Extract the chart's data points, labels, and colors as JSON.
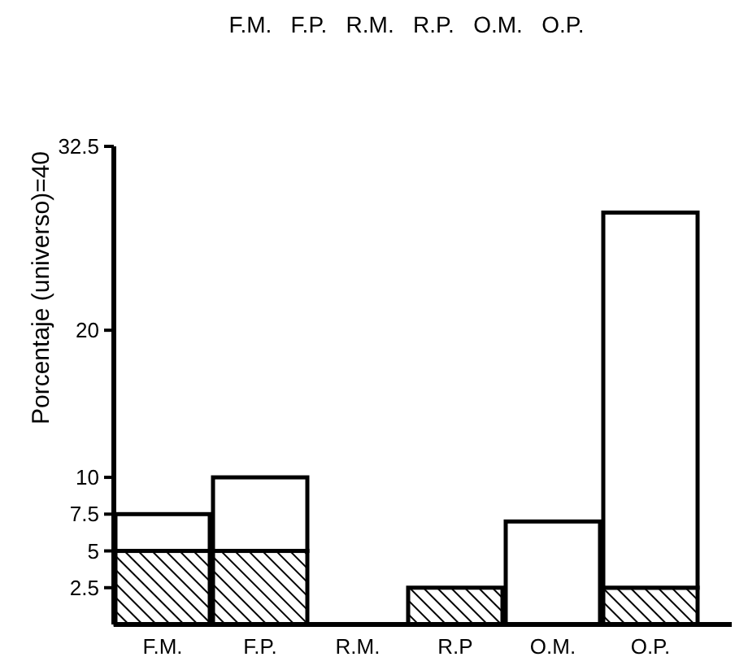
{
  "chart_data": {
    "type": "bar",
    "stacked": true,
    "ylabel": "Porcentaje   (universo)=40",
    "annotations": [
      "F.M.   F.P.   R.M.   R.P.   O.M.   O.P."
    ],
    "categories": [
      "F.M.",
      "F.P.",
      "R.M.",
      "R.P",
      "O.M.",
      "O.P."
    ],
    "series": [
      {
        "color": "#000000",
        "values": [
          5,
          5,
          0,
          2.5,
          0,
          2.5
        ]
      },
      {
        "color": "#ffffff",
        "values": [
          2.5,
          5,
          0,
          0,
          7,
          25.5
        ]
      }
    ],
    "ylim": [
      0,
      32.5
    ],
    "yticks": [
      2.5,
      5,
      7.5,
      10,
      20,
      32.5
    ],
    "grid": false
  }
}
